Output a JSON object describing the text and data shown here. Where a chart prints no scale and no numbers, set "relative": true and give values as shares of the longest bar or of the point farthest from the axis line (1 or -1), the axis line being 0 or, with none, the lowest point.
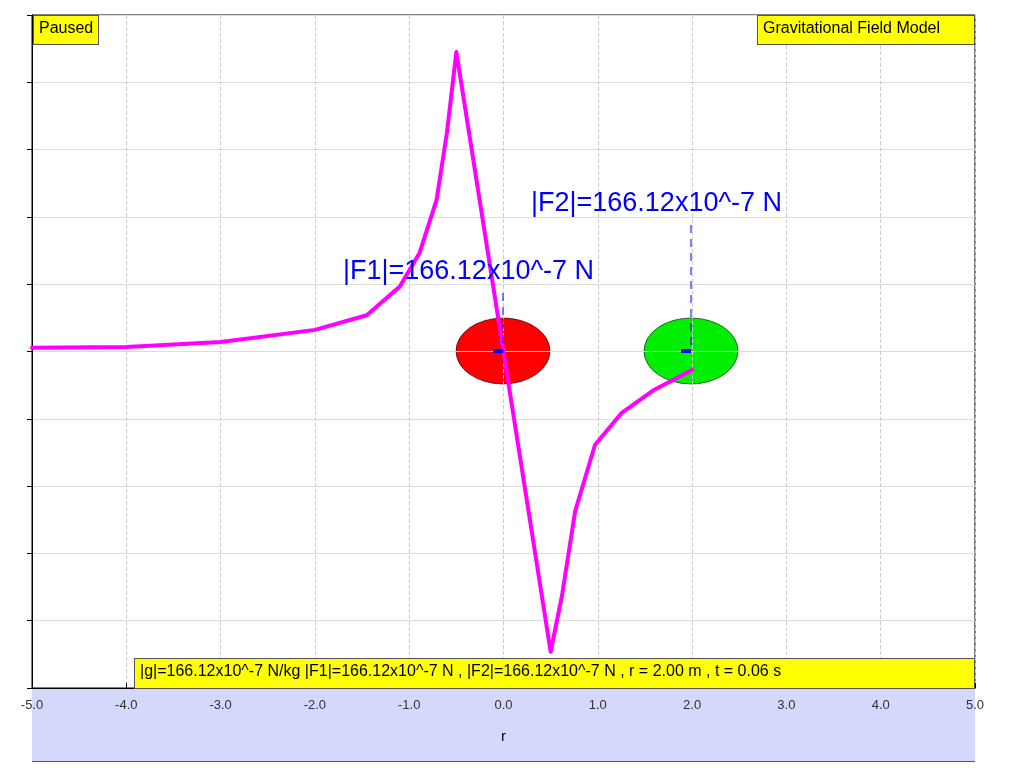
{
  "chart_data": {
    "type": "line",
    "title": "Gravitational Field Model",
    "xlabel": "r",
    "relative": true,
    "xlim": [
      -5,
      5
    ],
    "xticks": [
      {
        "value": -5,
        "label": "-5.0"
      },
      {
        "value": -4,
        "label": "-4.0"
      },
      {
        "value": -3,
        "label": "-3.0"
      },
      {
        "value": -2,
        "label": "-2.0"
      },
      {
        "value": -1,
        "label": "-1.0"
      },
      {
        "value": 0,
        "label": "0.0"
      },
      {
        "value": 1,
        "label": "1.0"
      },
      {
        "value": 2,
        "label": "2.0"
      },
      {
        "value": 3,
        "label": "3.0"
      },
      {
        "value": 4,
        "label": "4.0"
      },
      {
        "value": 5,
        "label": "5.0"
      }
    ],
    "grid": true,
    "series": [
      {
        "type": "line",
        "color": "#ff00ff",
        "marker": "none",
        "line_style": "solid",
        "x": [
          -5,
          -4,
          -3,
          -2,
          -1.45,
          -1.1,
          -0.89,
          -0.71,
          -0.6,
          -0.5,
          0.5,
          0.62,
          0.76,
          0.97,
          1.25,
          1.6,
          2
        ],
        "values": [
          0.535,
          0.536,
          0.544,
          0.563,
          0.586,
          0.631,
          0.684,
          0.767,
          0.873,
          1,
          0.057,
          0.145,
          0.278,
          0.382,
          0.432,
          0.469,
          0.5
        ]
      }
    ],
    "annotations": [
      "Paused",
      "|F1|=166.12x10^-7 N",
      "|F2|=166.12x10^-7 N",
      "|g|=166.12x10^-7 N/kg |F1|=166.12x10^-7 N , |F2|=166.12x10^-7 N , r = 2.00 m , t = 0.06 s"
    ]
  }
}
